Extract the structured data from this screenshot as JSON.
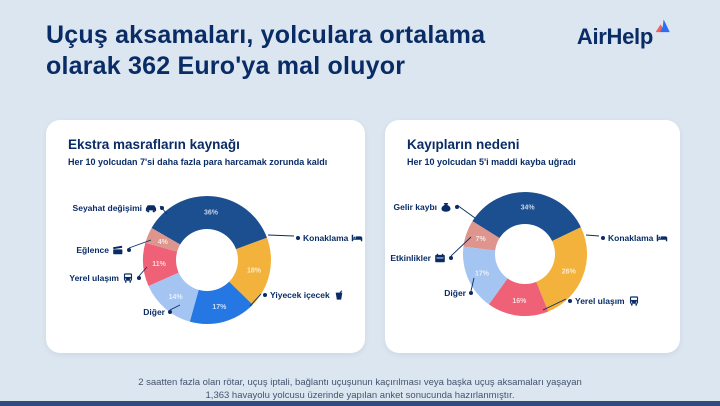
{
  "page": {
    "title": "Uçuş aksamaları, yolculara ortalama olarak 362 Euro'ya mal oluyor",
    "brand": "AirHelp",
    "footer": "2 saatten fazla olan rötar, uçuş iptali, bağlantı uçuşunun kaçırılması veya başka uçuş aksamaları yaşayan 1,363 havayolu yolcusu üzerinde yapılan anket sonucunda hazırlanmıştır.",
    "colors": {
      "background": "#dce6f0",
      "navy_text": "#0a2c66",
      "card": "#ffffff",
      "bottom_bar": "#2e4d7c",
      "logo_blue": "#2f6ef2",
      "logo_red": "#f0605d"
    }
  },
  "chart_data": [
    {
      "type": "pie",
      "donut": true,
      "title": "Ekstra masrafların kaynağı",
      "subtitle": "Her 10 yolcudan 7'si daha fazla para harcamak zorunda kaldı",
      "legend_position": "around",
      "start_angle": -60,
      "segments": [
        {
          "label": "Seyahat değişimi",
          "value": 36,
          "color": "#1c4f8f",
          "icon": "car"
        },
        {
          "label": "Konaklama",
          "value": 18,
          "color": "#f2b23c",
          "icon": "bed"
        },
        {
          "label": "Yiyecek içecek",
          "value": 17,
          "color": "#2578e4",
          "icon": "drink"
        },
        {
          "label": "Diğer",
          "value": 14,
          "color": "#a4c4f1",
          "icon": null
        },
        {
          "label": "Yerel ulaşım",
          "value": 11,
          "color": "#ef6176",
          "icon": "bus"
        },
        {
          "label": "Eğlence",
          "value": 4,
          "color": "#dd958e",
          "icon": "film"
        }
      ]
    },
    {
      "type": "pie",
      "donut": true,
      "title": "Kayıpların nedeni",
      "subtitle": "Her 10 yolcudan 5'i maddi kayba uğradı",
      "legend_position": "around",
      "start_angle": -58,
      "segments": [
        {
          "label": "Gelir kaybı",
          "value": 34,
          "color": "#1c4f8f",
          "icon": "money-bag"
        },
        {
          "label": "Konaklama",
          "value": 26,
          "color": "#f2b23c",
          "icon": "bed"
        },
        {
          "label": "Yerel ulaşım",
          "value": 16,
          "color": "#ef6176",
          "icon": "bus"
        },
        {
          "label": "Diğer",
          "value": 17,
          "color": "#a4c4f1",
          "icon": null
        },
        {
          "label": "Etkinlikler",
          "value": 7,
          "color": "#dd958e",
          "icon": "calendar"
        }
      ]
    }
  ]
}
